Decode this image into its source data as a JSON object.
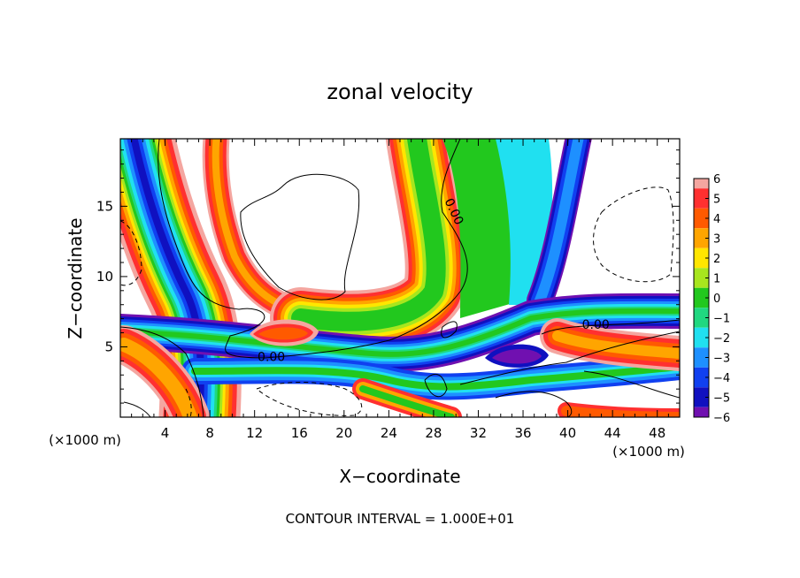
{
  "chart_data": {
    "type": "heatmap",
    "title": "zonal velocity",
    "xlabel": "X−coordinate",
    "ylabel": "Z−coordinate",
    "x_unit_label": "(×1000 m)",
    "y_unit_label": "(×1000 m)",
    "footer": "CONTOUR INTERVAL = 1.000E+01",
    "xlim": [
      0,
      50
    ],
    "ylim": [
      0,
      19.8
    ],
    "x_ticks": [
      4,
      8,
      12,
      16,
      20,
      24,
      28,
      32,
      36,
      40,
      44,
      48
    ],
    "y_ticks": [
      5,
      10,
      15
    ],
    "colorbar": {
      "range": [
        -6,
        6
      ],
      "ticks": [
        "6",
        "5",
        "4",
        "3",
        "2",
        "1",
        "0",
        "−1",
        "−2",
        "−3",
        "−4",
        "−5",
        "−6"
      ],
      "colors": {
        "6": "#f4a6a0",
        "5": "#ff3030",
        "4": "#ff5a00",
        "3": "#ffa500",
        "2": "#ffe600",
        "1": "#a8e61e",
        "0": "#22c81e",
        "-1": "#20d880",
        "-2": "#20e0f0",
        "-3": "#1e90ff",
        "-4": "#1040f0",
        "-5": "#1010c0",
        "-6": "#7010b0"
      }
    },
    "contour_labels": [
      {
        "text": "0.00",
        "x": 13.5,
        "z": 4.0
      },
      {
        "text": "0.00",
        "x": 29.5,
        "z": 14.5
      },
      {
        "text": "0.00",
        "x": 42.5,
        "z": 6.3
      }
    ]
  }
}
